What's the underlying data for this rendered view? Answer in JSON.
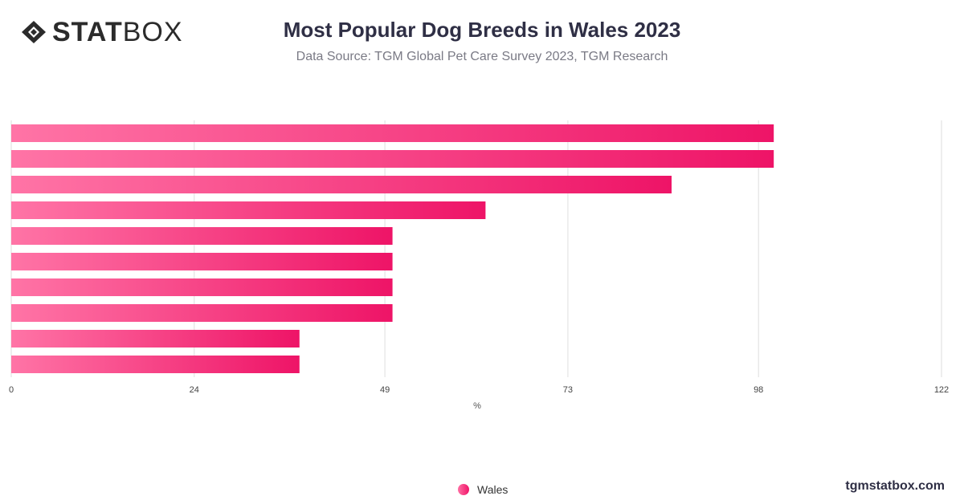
{
  "brand": {
    "logo_bold": "STAT",
    "logo_thin": "BOX",
    "logo_icon": "statbox-diamond-icon",
    "site": "tgmstatbox.com"
  },
  "header": {
    "title": "Most Popular Dog Breeds in Wales 2023",
    "subtitle": "Data Source: TGM Global Pet Care Survey 2023, TGM Research"
  },
  "colors": {
    "bar_start": "#ff74a6",
    "bar_end": "#ee1467",
    "grid": "#dedede",
    "title": "#2f2f45"
  },
  "chart_data": {
    "type": "bar",
    "orientation": "horizontal",
    "title": "Most Popular Dog Breeds in Wales 2023",
    "subtitle": "Data Source: TGM Global Pet Care Survey 2023, TGM Research",
    "xlabel": "%",
    "ylabel": "",
    "xlim": [
      0,
      122
    ],
    "xticks": [
      "0",
      "24",
      "49",
      "73",
      "98",
      "122"
    ],
    "xtick_values": [
      0,
      24,
      49,
      73,
      98,
      122
    ],
    "grid": true,
    "legend_position": "bottom-center",
    "series": [
      {
        "name": "Wales",
        "values": [
          100,
          100,
          86.6,
          62.2,
          50,
          50,
          50,
          50,
          37.8,
          37.8
        ]
      }
    ]
  }
}
